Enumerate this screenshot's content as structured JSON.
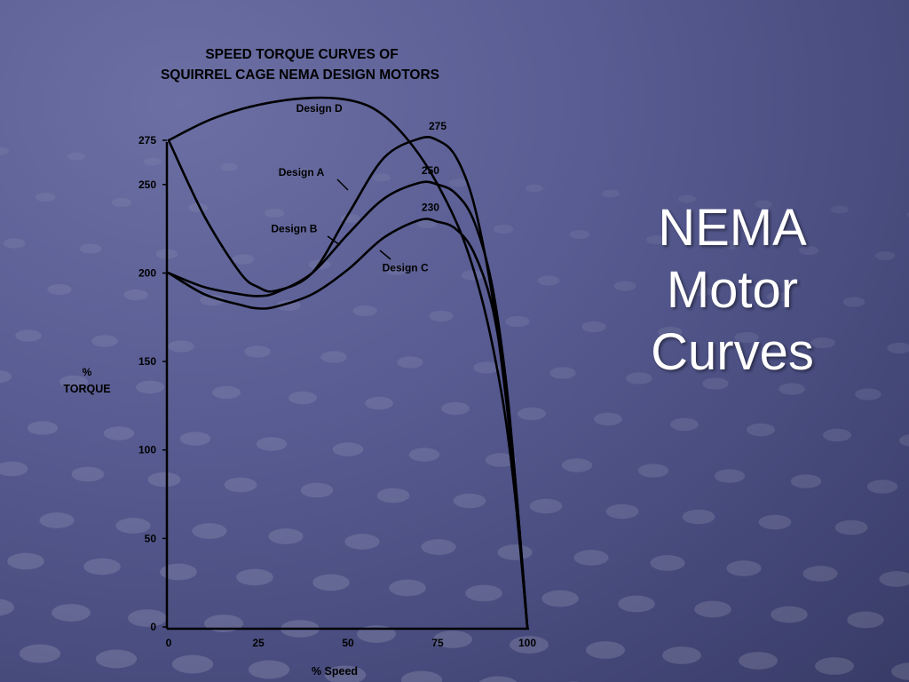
{
  "slide": {
    "title_lines": [
      "NEMA",
      "Motor",
      "Curves"
    ],
    "colors": {
      "background": "#585c92",
      "title": "#ffffff",
      "ink": "#000000"
    }
  },
  "chart_data": {
    "type": "line",
    "title": "SPEED TORQUE CURVES OF",
    "subtitle": "SQUIRREL CAGE NEMA DESIGN MOTORS",
    "xlabel": "% Speed",
    "ylabel": [
      "%",
      "TORQUE"
    ],
    "xlim": [
      0,
      100
    ],
    "ylim": [
      0,
      275
    ],
    "x_ticks": [
      "0",
      "25",
      "50",
      "75",
      "100"
    ],
    "y_ticks": [
      "275",
      "250",
      "200",
      "150",
      "100",
      "50",
      "0"
    ],
    "y_tick_values": [
      275,
      250,
      200,
      150,
      100,
      50,
      0
    ],
    "grid": false,
    "legend": "none",
    "series": [
      {
        "name": "Design D",
        "x": [
          0,
          12,
          25,
          40,
          52,
          60,
          68,
          75,
          82,
          88,
          93,
          96,
          98,
          100
        ],
        "y": [
          275,
          287,
          295,
          299,
          297,
          289,
          272,
          250,
          220,
          180,
          130,
          85,
          45,
          0
        ]
      },
      {
        "name": "Design A",
        "x": [
          0,
          10,
          20,
          25,
          30,
          40,
          50,
          60,
          70,
          75,
          80,
          85,
          90,
          94,
          97,
          100
        ],
        "y": [
          275,
          232,
          200,
          192,
          190,
          200,
          233,
          265,
          276,
          275,
          266,
          240,
          190,
          130,
          70,
          0
        ]
      },
      {
        "name": "Design B",
        "x": [
          0,
          10,
          20,
          25,
          30,
          40,
          50,
          60,
          70,
          75,
          80,
          85,
          90,
          94,
          97,
          100
        ],
        "y": [
          200,
          192,
          188,
          187,
          189,
          200,
          222,
          242,
          251,
          250,
          245,
          230,
          195,
          140,
          75,
          0
        ]
      },
      {
        "name": "Design C",
        "x": [
          0,
          10,
          20,
          25,
          30,
          40,
          50,
          60,
          70,
          75,
          80,
          85,
          90,
          94,
          97,
          100
        ],
        "y": [
          200,
          188,
          182,
          180,
          181,
          188,
          202,
          220,
          230,
          229,
          225,
          212,
          183,
          135,
          75,
          0
        ]
      }
    ],
    "annotations": [
      {
        "text": "Design D",
        "x": 42,
        "y": 291
      },
      {
        "text": "Design A",
        "x": 37,
        "y": 255
      },
      {
        "text": "Design B",
        "x": 35,
        "y": 223
      },
      {
        "text": "Design C",
        "x": 66,
        "y": 201
      },
      {
        "text": "275",
        "x": 75,
        "y": 281
      },
      {
        "text": "250",
        "x": 73,
        "y": 256
      },
      {
        "text": "230",
        "x": 73,
        "y": 235
      }
    ]
  }
}
